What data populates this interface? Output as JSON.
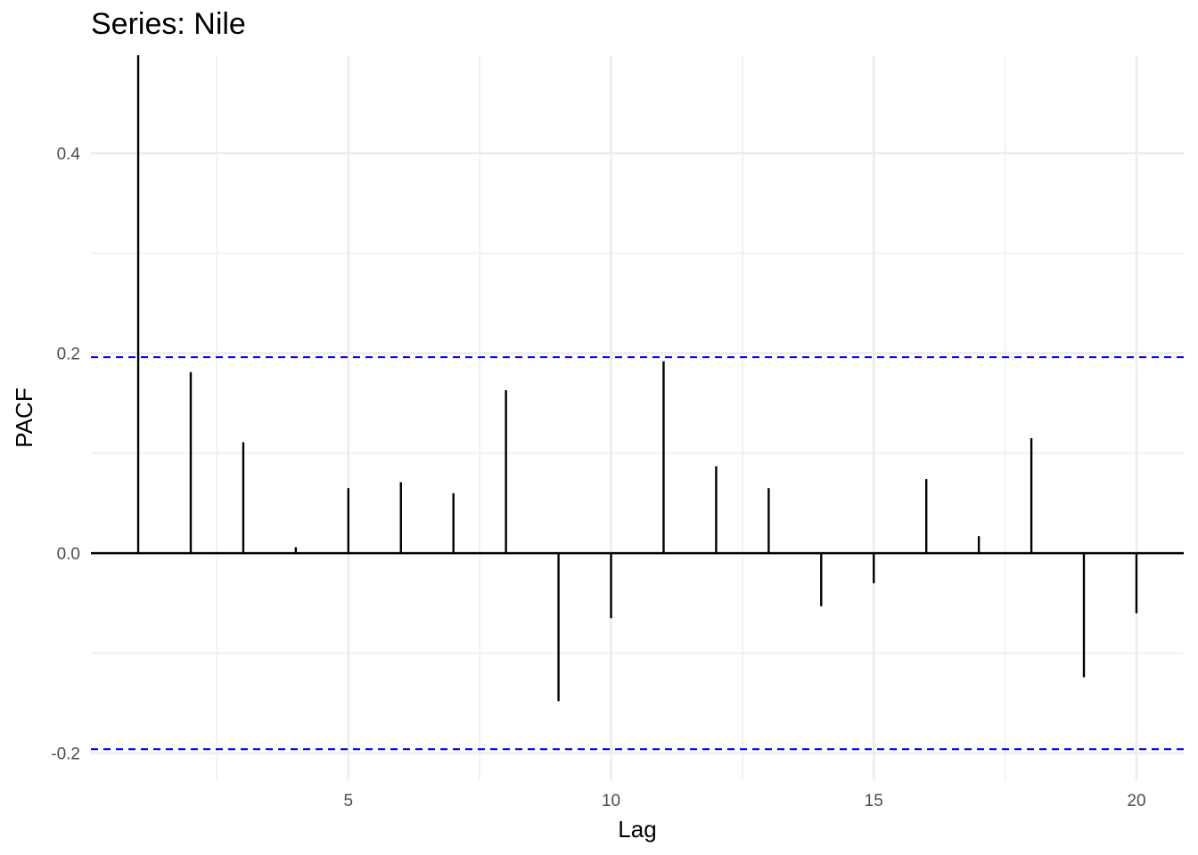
{
  "chart_data": {
    "type": "bar",
    "title": "Series: Nile",
    "xlabel": "Lag",
    "ylabel": "PACF",
    "x": [
      1,
      2,
      3,
      4,
      5,
      6,
      7,
      8,
      9,
      10,
      11,
      12,
      13,
      14,
      15,
      16,
      17,
      18,
      19,
      20
    ],
    "values": [
      0.498,
      0.181,
      0.111,
      0.006,
      0.065,
      0.071,
      0.06,
      0.163,
      -0.148,
      -0.065,
      0.192,
      0.087,
      0.065,
      -0.053,
      -0.03,
      0.074,
      0.017,
      0.115,
      -0.124,
      -0.06
    ],
    "confidence_bounds": [
      0.196,
      -0.196
    ],
    "xlim": [
      0.1,
      20.9
    ],
    "ylim": [
      -0.227,
      0.498
    ],
    "x_ticks": [
      5,
      10,
      15,
      20
    ],
    "x_tick_labels": [
      "5",
      "10",
      "15",
      "20"
    ],
    "y_ticks": [
      -0.2,
      0.0,
      0.2,
      0.4
    ],
    "y_tick_labels": [
      "-0.2",
      "0.0",
      "0.2",
      "0.4"
    ],
    "grid": true,
    "legend": "none",
    "colors": {
      "bars": "#000000",
      "bounds": "#0000ff",
      "grid": "#ebebeb",
      "zero_line": "#000000"
    }
  }
}
